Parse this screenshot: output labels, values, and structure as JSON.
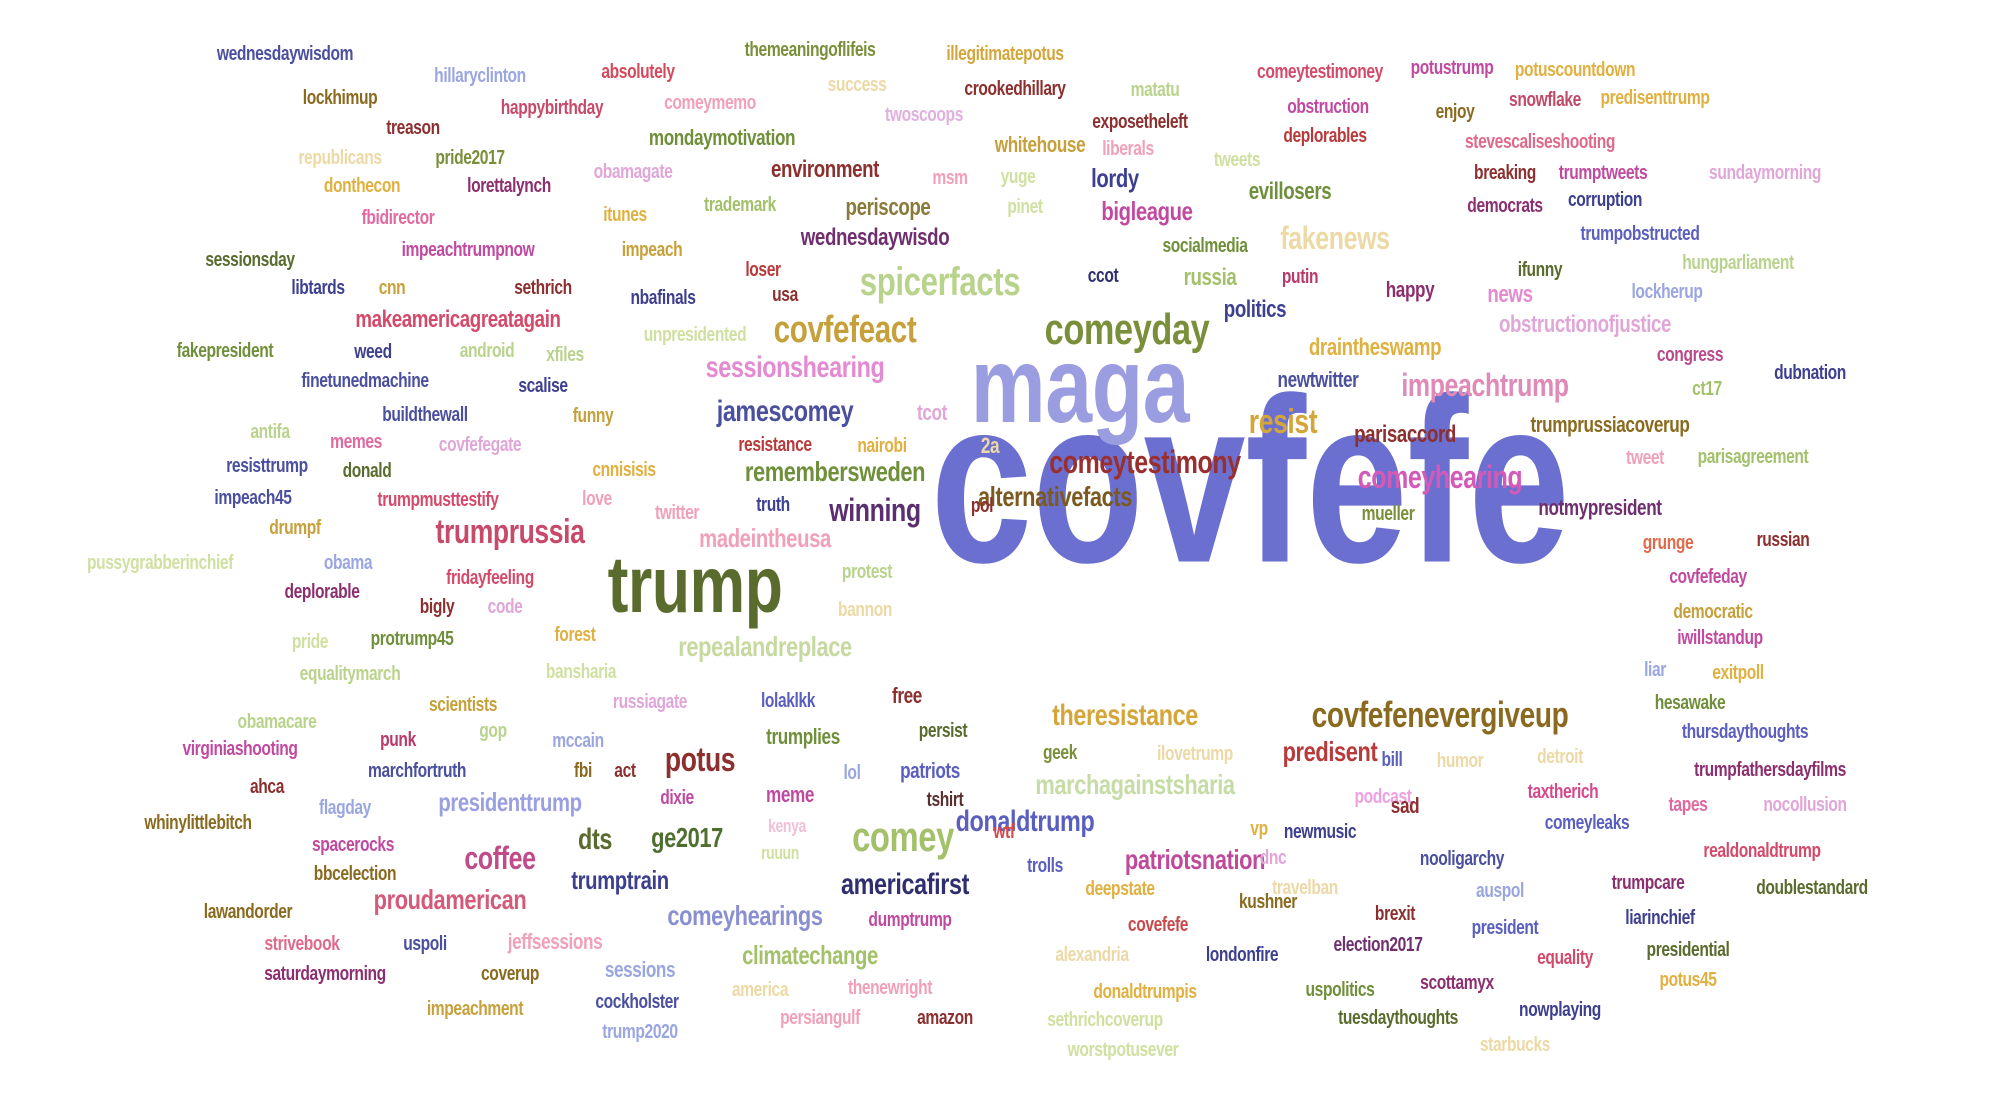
{
  "palette": [
    "#4a4f9e",
    "#8c2f2f",
    "#5a6b2e",
    "#c6a03a",
    "#d45a8a",
    "#a3c06a",
    "#7aa0d8",
    "#3d2f6f",
    "#e0a64f",
    "#6f8f3a"
  ],
  "words": [
    {
      "text": "covfefe",
      "color": "#6b6fcf"
    },
    {
      "text": "maga",
      "color": "#9a9de0"
    },
    {
      "text": "trump",
      "color": "#5a6b2e"
    },
    {
      "text": "comeyday",
      "color": "#7a8f3a"
    },
    {
      "text": "spicerfacts",
      "color": "#b9d38c"
    },
    {
      "text": "covfefeact",
      "color": "#c6a03a"
    },
    {
      "text": "comey",
      "color": "#a3c06a"
    },
    {
      "text": "covfefenevergiveup",
      "color": "#8a6a1f"
    },
    {
      "text": "comeytestimony",
      "color": "#9a2f2f"
    },
    {
      "text": "trumprussia",
      "color": "#c84a6a"
    },
    {
      "text": "impeachtrump",
      "color": "#e08ab8"
    },
    {
      "text": "resist",
      "color": "#d4a63a"
    },
    {
      "text": "comeyhearing",
      "color": "#d45ab8"
    },
    {
      "text": "sessionshearing",
      "color": "#e48ad0"
    },
    {
      "text": "jamescomey",
      "color": "#4a4f9e"
    },
    {
      "text": "fakenews",
      "color": "#ecd9a6"
    },
    {
      "text": "potus",
      "color": "#8c2f2f"
    },
    {
      "text": "coffee",
      "color": "#c04a8a"
    },
    {
      "text": "americafirst",
      "color": "#2f2f6f"
    },
    {
      "text": "donaldtrump",
      "color": "#5a5fbf"
    },
    {
      "text": "theresistance",
      "color": "#d4a63a"
    },
    {
      "text": "winning",
      "color": "#5a2f6f"
    },
    {
      "text": "alternativefacts",
      "color": "#7a5a1f"
    },
    {
      "text": "remembersweden",
      "color": "#6f8f3a"
    },
    {
      "text": "repealandreplace",
      "color": "#c6d9a0"
    },
    {
      "text": "predisent",
      "color": "#b83a3a"
    },
    {
      "text": "proudamerican",
      "color": "#d45a7a"
    },
    {
      "text": "comeyhearings",
      "color": "#8a8fd0"
    },
    {
      "text": "patriotsnation",
      "color": "#c04a9a"
    },
    {
      "text": "marchagainstsharia",
      "color": "#c6dca6"
    },
    {
      "text": "presidenttrump",
      "color": "#9a9fe0"
    },
    {
      "text": "madeintheusa",
      "color": "#f0a0b8"
    },
    {
      "text": "ge2017",
      "color": "#4f6f2f"
    },
    {
      "text": "dts",
      "color": "#5a6b2e"
    },
    {
      "text": "trumptrain",
      "color": "#3d3f8f"
    },
    {
      "text": "climatechange",
      "color": "#a3c06a"
    },
    {
      "text": "makeamericagreatagain",
      "color": "#d44a6a"
    },
    {
      "text": "wednesdaywisdo",
      "color": "#6f2f6f"
    },
    {
      "text": "bigleague",
      "color": "#c04aa0"
    },
    {
      "text": "lordy",
      "color": "#3d3f8f"
    },
    {
      "text": "periscope",
      "color": "#8a7a3a"
    },
    {
      "text": "environment",
      "color": "#8c2f2f"
    },
    {
      "text": "evillosers",
      "color": "#6f8f3a"
    },
    {
      "text": "russia",
      "color": "#a3c06a"
    },
    {
      "text": "politics",
      "color": "#3d3f8f"
    },
    {
      "text": "draintheswamp",
      "color": "#e0b040"
    },
    {
      "text": "parisaccord",
      "color": "#8c2f2f"
    },
    {
      "text": "newtwitter",
      "color": "#4a4f9e"
    },
    {
      "text": "notmypresident",
      "color": "#6f2f6f"
    },
    {
      "text": "trumprussiacoverup",
      "color": "#8a6a1f"
    },
    {
      "text": "obstructionofjustice",
      "color": "#e0a6d8"
    },
    {
      "text": "news",
      "color": "#e48ad0"
    },
    {
      "text": "happy",
      "color": "#8c2f6f"
    },
    {
      "text": "wednesdaywisdom",
      "color": "#4a4f9e"
    },
    {
      "text": "hillaryclinton",
      "color": "#9aa6e0"
    },
    {
      "text": "absolutely",
      "color": "#d44a5a"
    },
    {
      "text": "themeaningoflifeis",
      "color": "#7a8f3a"
    },
    {
      "text": "illegitimatepotus",
      "color": "#d4a63a"
    },
    {
      "text": "comeytestimoney",
      "color": "#d44a6a"
    },
    {
      "text": "potustrump",
      "color": "#c04aa0"
    },
    {
      "text": "potuscountdown",
      "color": "#e0b040"
    },
    {
      "text": "lockhimup",
      "color": "#8a6a1f"
    },
    {
      "text": "happybirthday",
      "color": "#c84a6a"
    },
    {
      "text": "success",
      "color": "#ecd9a6"
    },
    {
      "text": "comeymemo",
      "color": "#f0a0b8"
    },
    {
      "text": "crookedhillary",
      "color": "#8c2f2f"
    },
    {
      "text": "matatu",
      "color": "#b9d38c"
    },
    {
      "text": "obstruction",
      "color": "#c04aa0"
    },
    {
      "text": "enjoy",
      "color": "#8a6a1f"
    },
    {
      "text": "snowflake",
      "color": "#c04a6a"
    },
    {
      "text": "predisenttrump",
      "color": "#e0b040"
    },
    {
      "text": "treason",
      "color": "#8c2f2f"
    },
    {
      "text": "twoscoops",
      "color": "#e0b0e0"
    },
    {
      "text": "exposetheleft",
      "color": "#8c2f2f"
    },
    {
      "text": "deplorables",
      "color": "#b83a3a"
    },
    {
      "text": "stevescaliseshooting",
      "color": "#e06a8a"
    },
    {
      "text": "republicans",
      "color": "#ecd9a6"
    },
    {
      "text": "pride2017",
      "color": "#7a8f3a"
    },
    {
      "text": "mondaymotivation",
      "color": "#6f8f3a"
    },
    {
      "text": "whitehouse",
      "color": "#c6a03a"
    },
    {
      "text": "liberals",
      "color": "#f0a0b8"
    },
    {
      "text": "tweets",
      "color": "#d0e0a0"
    },
    {
      "text": "breaking",
      "color": "#8c2f2f"
    },
    {
      "text": "trumptweets",
      "color": "#c04aa0"
    },
    {
      "text": "sundaymorning",
      "color": "#e0a6d8"
    },
    {
      "text": "donthecon",
      "color": "#e0b040"
    },
    {
      "text": "lorettalynch",
      "color": "#8c2f6f"
    },
    {
      "text": "obamagate",
      "color": "#e0a6d8"
    },
    {
      "text": "msm",
      "color": "#f0a0b8"
    },
    {
      "text": "yuge",
      "color": "#d0e0a0"
    },
    {
      "text": "democrats",
      "color": "#8c2f6f"
    },
    {
      "text": "corruption",
      "color": "#3d3f8f"
    },
    {
      "text": "fbidirector",
      "color": "#e06aa0"
    },
    {
      "text": "itunes",
      "color": "#e0b040"
    },
    {
      "text": "trademark",
      "color": "#a3c06a"
    },
    {
      "text": "pinet",
      "color": "#d0e0a0"
    },
    {
      "text": "impeachtrumpnow",
      "color": "#c04aa0"
    },
    {
      "text": "impeach",
      "color": "#c6a03a"
    },
    {
      "text": "socialmedia",
      "color": "#6f8f3a"
    },
    {
      "text": "trumpobstructed",
      "color": "#5a5fbf"
    },
    {
      "text": "sessionsday",
      "color": "#5a6b2e"
    },
    {
      "text": "loser",
      "color": "#b83a3a"
    },
    {
      "text": "ifunny",
      "color": "#5a6b2e"
    },
    {
      "text": "hungparliament",
      "color": "#b9d38c"
    },
    {
      "text": "libtards",
      "color": "#3d3f8f"
    },
    {
      "text": "cnn",
      "color": "#c6a03a"
    },
    {
      "text": "sethrich",
      "color": "#8c2f2f"
    },
    {
      "text": "ccot",
      "color": "#2f2f6f"
    },
    {
      "text": "putin",
      "color": "#b83a6a"
    },
    {
      "text": "lockherup",
      "color": "#9aa6e0"
    },
    {
      "text": "nbafinals",
      "color": "#3d3f8f"
    },
    {
      "text": "usa",
      "color": "#8c2f2f"
    },
    {
      "text": "congress",
      "color": "#b84a8a"
    },
    {
      "text": "fakepresident",
      "color": "#6f8f3a"
    },
    {
      "text": "weed",
      "color": "#3d3f8f"
    },
    {
      "text": "android",
      "color": "#b9d38c"
    },
    {
      "text": "unpresidented",
      "color": "#d0e0a0"
    },
    {
      "text": "xfiles",
      "color": "#b9d38c"
    },
    {
      "text": "dubnation",
      "color": "#3d3f8f"
    },
    {
      "text": "finetunedmachine",
      "color": "#4a4f9e"
    },
    {
      "text": "scalise",
      "color": "#3d3f8f"
    },
    {
      "text": "ct17",
      "color": "#a3c06a"
    },
    {
      "text": "antifa",
      "color": "#b9d38c"
    },
    {
      "text": "buildthewall",
      "color": "#4a4f9e"
    },
    {
      "text": "funny",
      "color": "#c6a03a"
    },
    {
      "text": "tcot",
      "color": "#e0a6d8"
    },
    {
      "text": "resisttrump",
      "color": "#4a4f9e"
    },
    {
      "text": "memes",
      "color": "#e06aa0"
    },
    {
      "text": "covfefegate",
      "color": "#e0a6d8"
    },
    {
      "text": "resistance",
      "color": "#b83a3a"
    },
    {
      "text": "nairobi",
      "color": "#e0b040"
    },
    {
      "text": "2a",
      "color": "#ecd9a6"
    },
    {
      "text": "tweet",
      "color": "#f0a0b8"
    },
    {
      "text": "parisagreement",
      "color": "#a3c06a"
    },
    {
      "text": "donald",
      "color": "#5a6b2e"
    },
    {
      "text": "cnnisisis",
      "color": "#e0b040"
    },
    {
      "text": "impeach45",
      "color": "#4a4f9e"
    },
    {
      "text": "trumpmusttestify",
      "color": "#d44a6a"
    },
    {
      "text": "love",
      "color": "#f0a0b8"
    },
    {
      "text": "truth",
      "color": "#3d3f8f"
    },
    {
      "text": "pol",
      "color": "#8c2f2f"
    },
    {
      "text": "twitter",
      "color": "#f0a0b8"
    },
    {
      "text": "mueller",
      "color": "#7a8f3a"
    },
    {
      "text": "drumpf",
      "color": "#c6a03a"
    },
    {
      "text": "pussygrabberinchief",
      "color": "#d0e0a0"
    },
    {
      "text": "obama",
      "color": "#9aa6e0"
    },
    {
      "text": "fridayfeeling",
      "color": "#d44a6a"
    },
    {
      "text": "protest",
      "color": "#b9d38c"
    },
    {
      "text": "grunge",
      "color": "#e06a4a"
    },
    {
      "text": "russian",
      "color": "#8c2f2f"
    },
    {
      "text": "covfefeday",
      "color": "#c04aa0"
    },
    {
      "text": "deplorable",
      "color": "#8c2f6f"
    },
    {
      "text": "bigly",
      "color": "#8c2f2f"
    },
    {
      "text": "code",
      "color": "#e0a6d8"
    },
    {
      "text": "bannon",
      "color": "#ecd9a6"
    },
    {
      "text": "democratic",
      "color": "#c6a03a"
    },
    {
      "text": "pride",
      "color": "#d0e0a0"
    },
    {
      "text": "protrump45",
      "color": "#6f8f3a"
    },
    {
      "text": "forest",
      "color": "#e0b040"
    },
    {
      "text": "iwillstandup",
      "color": "#c04aa0"
    },
    {
      "text": "equalitymarch",
      "color": "#b9d38c"
    },
    {
      "text": "bansharia",
      "color": "#d0e0a0"
    },
    {
      "text": "liar",
      "color": "#9aa6e0"
    },
    {
      "text": "exitpoll",
      "color": "#e0b040"
    },
    {
      "text": "scientists",
      "color": "#c6a03a"
    },
    {
      "text": "russiagate",
      "color": "#e0a6d8"
    },
    {
      "text": "lolaklkk",
      "color": "#5a5fbf"
    },
    {
      "text": "free",
      "color": "#8c2f2f"
    },
    {
      "text": "hesawake",
      "color": "#6f8f3a"
    },
    {
      "text": "obamacare",
      "color": "#b9d38c"
    },
    {
      "text": "gop",
      "color": "#b9d38c"
    },
    {
      "text": "punk",
      "color": "#b83a6a"
    },
    {
      "text": "mccain",
      "color": "#9aa6e0"
    },
    {
      "text": "trumplies",
      "color": "#6f8f3a"
    },
    {
      "text": "persist",
      "color": "#5a6b2e"
    },
    {
      "text": "geek",
      "color": "#7a8f3a"
    },
    {
      "text": "ilovetrump",
      "color": "#ecd9a6"
    },
    {
      "text": "humor",
      "color": "#ecd9a6"
    },
    {
      "text": "detroit",
      "color": "#ecd9a6"
    },
    {
      "text": "thursdaythoughts",
      "color": "#5a5fbf"
    },
    {
      "text": "virginiashooting",
      "color": "#c04aa0"
    },
    {
      "text": "marchfortruth",
      "color": "#4a4f9e"
    },
    {
      "text": "fbi",
      "color": "#8a6a1f"
    },
    {
      "text": "act",
      "color": "#8c2f2f"
    },
    {
      "text": "bill",
      "color": "#5a5fbf"
    },
    {
      "text": "trumpfathersdayfilms",
      "color": "#8c2f6f"
    },
    {
      "text": "ahca",
      "color": "#8c2f2f"
    },
    {
      "text": "lol",
      "color": "#9aa6e0"
    },
    {
      "text": "meme",
      "color": "#c04aa0"
    },
    {
      "text": "patriots",
      "color": "#5a5fbf"
    },
    {
      "text": "podcast",
      "color": "#f0a0e0"
    },
    {
      "text": "taxtherich",
      "color": "#d44a8a"
    },
    {
      "text": "whinylittlebitch",
      "color": "#8a6a1f"
    },
    {
      "text": "flagday",
      "color": "#9aa6e0"
    },
    {
      "text": "dixie",
      "color": "#c04aa0"
    },
    {
      "text": "tshirt",
      "color": "#5a2f2f"
    },
    {
      "text": "sad",
      "color": "#8c2f2f"
    },
    {
      "text": "tapes",
      "color": "#e06aa0"
    },
    {
      "text": "nocollusion",
      "color": "#e0a6d8"
    },
    {
      "text": "kenya",
      "color": "#f0c0d8"
    },
    {
      "text": "wtf",
      "color": "#d44a4a"
    },
    {
      "text": "vp",
      "color": "#e0b040"
    },
    {
      "text": "comeyleaks",
      "color": "#5a5fbf"
    },
    {
      "text": "spacerocks",
      "color": "#c04aa0"
    },
    {
      "text": "newmusic",
      "color": "#3d3f8f"
    },
    {
      "text": "realdonaldtrump",
      "color": "#d44a6a"
    },
    {
      "text": "ruuun",
      "color": "#d0e0a0"
    },
    {
      "text": "dnc",
      "color": "#e0a6d8"
    },
    {
      "text": "nooligarchy",
      "color": "#4a4f9e"
    },
    {
      "text": "bbcelection",
      "color": "#8a6a1f"
    },
    {
      "text": "trolls",
      "color": "#5a5fbf"
    },
    {
      "text": "deepstate",
      "color": "#e0b040"
    },
    {
      "text": "travelban",
      "color": "#ecd9a6"
    },
    {
      "text": "auspol",
      "color": "#9aa6e0"
    },
    {
      "text": "trumpcare",
      "color": "#8c2f6f"
    },
    {
      "text": "doublestandard",
      "color": "#5a6b2e"
    },
    {
      "text": "lawandorder",
      "color": "#8a6a1f"
    },
    {
      "text": "dumptrump",
      "color": "#c04aa0"
    },
    {
      "text": "kushner",
      "color": "#8a6a1f"
    },
    {
      "text": "brexit",
      "color": "#8c2f2f"
    },
    {
      "text": "strivebook",
      "color": "#e06a8a"
    },
    {
      "text": "uspoli",
      "color": "#4a4f9e"
    },
    {
      "text": "jeffsessions",
      "color": "#f0a0b8"
    },
    {
      "text": "covefefe",
      "color": "#c84a4a"
    },
    {
      "text": "president",
      "color": "#5a5fbf"
    },
    {
      "text": "liarinchief",
      "color": "#3d3f8f"
    },
    {
      "text": "saturdaymorning",
      "color": "#8c2f6f"
    },
    {
      "text": "coverup",
      "color": "#8a6a1f"
    },
    {
      "text": "sessions",
      "color": "#9aa6e0"
    },
    {
      "text": "alexandria",
      "color": "#ecd9a6"
    },
    {
      "text": "londonfire",
      "color": "#3d3f8f"
    },
    {
      "text": "election2017",
      "color": "#6f2f6f"
    },
    {
      "text": "equality",
      "color": "#d44a6a"
    },
    {
      "text": "presidential",
      "color": "#5a6b2e"
    },
    {
      "text": "america",
      "color": "#ecd9a6"
    },
    {
      "text": "thenewright",
      "color": "#f0a0b8"
    },
    {
      "text": "donaldtrumpis",
      "color": "#e0b040"
    },
    {
      "text": "uspolitics",
      "color": "#6f8f3a"
    },
    {
      "text": "scottamyx",
      "color": "#8c2f6f"
    },
    {
      "text": "potus45",
      "color": "#e0b040"
    },
    {
      "text": "impeachment",
      "color": "#c6a03a"
    },
    {
      "text": "cockholster",
      "color": "#4a4f9e"
    },
    {
      "text": "nowplaying",
      "color": "#3d3f8f"
    },
    {
      "text": "persiangulf",
      "color": "#f0a0b8"
    },
    {
      "text": "amazon",
      "color": "#8c2f2f"
    },
    {
      "text": "tuesdaythoughts",
      "color": "#5a6b2e"
    },
    {
      "text": "sethrichcoverup",
      "color": "#d0e0a0"
    },
    {
      "text": "trump2020",
      "color": "#9aa6e0"
    },
    {
      "text": "starbucks",
      "color": "#ecd9a6"
    },
    {
      "text": "worstpotusever",
      "color": "#d0e0a0"
    }
  ]
}
